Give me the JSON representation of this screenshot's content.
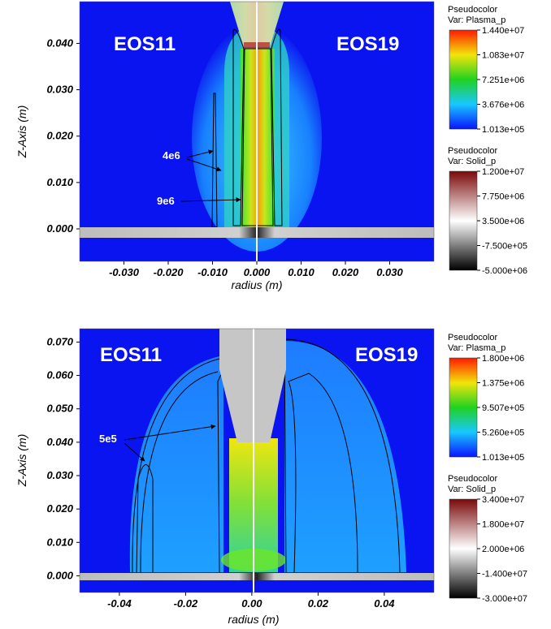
{
  "chart_data": [
    {
      "type": "heatmap",
      "panel": "top",
      "xlabel": "radius (m)",
      "ylabel": "Z-Axis (m)",
      "xlim": [
        -0.04,
        0.04
      ],
      "ylim": [
        -0.007,
        0.049
      ],
      "x_ticks": [
        "-0.030",
        "-0.020",
        "-0.010",
        "0.000",
        "0.010",
        "0.020",
        "0.030"
      ],
      "x_tick_values": [
        -0.03,
        -0.02,
        -0.01,
        0.0,
        0.01,
        0.02,
        0.03
      ],
      "y_ticks": [
        "0.000",
        "0.010",
        "0.020",
        "0.030",
        "0.040"
      ],
      "y_tick_values": [
        0.0,
        0.01,
        0.02,
        0.03,
        0.04
      ],
      "left_label": "EOS11",
      "right_label": "EOS19",
      "annotations": [
        "4e6",
        "9e6"
      ],
      "legends": [
        {
          "title": "Pseudocolor",
          "var": "Var: Plasma_p",
          "ticks": [
            "1.440e+07",
            "1.083e+07",
            "7.251e+06",
            "3.676e+06",
            "1.013e+05"
          ],
          "colormap": "hot_desaturated"
        },
        {
          "title": "Pseudocolor",
          "var": "Var: Solid_p",
          "ticks": [
            "1.200e+07",
            "7.750e+06",
            "3.500e+06",
            "-7.500e+05",
            "-5.000e+06"
          ],
          "colormap": "red_white_black"
        }
      ]
    },
    {
      "type": "heatmap",
      "panel": "bottom",
      "xlabel": "radius (m)",
      "ylabel": "Z-Axis (m)",
      "xlim": [
        -0.052,
        0.055
      ],
      "ylim": [
        -0.005,
        0.074
      ],
      "x_ticks": [
        "-0.04",
        "-0.02",
        "0.00",
        "0.02",
        "0.04"
      ],
      "x_tick_values": [
        -0.04,
        -0.02,
        0.0,
        0.02,
        0.04
      ],
      "y_ticks": [
        "0.000",
        "0.010",
        "0.020",
        "0.030",
        "0.040",
        "0.050",
        "0.060",
        "0.070"
      ],
      "y_tick_values": [
        0.0,
        0.01,
        0.02,
        0.03,
        0.04,
        0.05,
        0.06,
        0.07
      ],
      "left_label": "EOS11",
      "right_label": "EOS19",
      "annotations": [
        "5e5"
      ],
      "legends": [
        {
          "title": "Pseudocolor",
          "var": "Var: Plasma_p",
          "ticks": [
            "1.800e+06",
            "1.375e+06",
            "9.507e+05",
            "5.260e+05",
            "1.013e+05"
          ],
          "colormap": "hot_desaturated"
        },
        {
          "title": "Pseudocolor",
          "var": "Var: Solid_p",
          "ticks": [
            "3.400e+07",
            "1.800e+07",
            "2.000e+06",
            "-1.400e+07",
            "-3.000e+07"
          ],
          "colormap": "red_white_black"
        }
      ]
    }
  ],
  "colors": {
    "background_field": "#0a14f0",
    "solid_gray": "#c8c8c8",
    "contour": "#000000"
  }
}
